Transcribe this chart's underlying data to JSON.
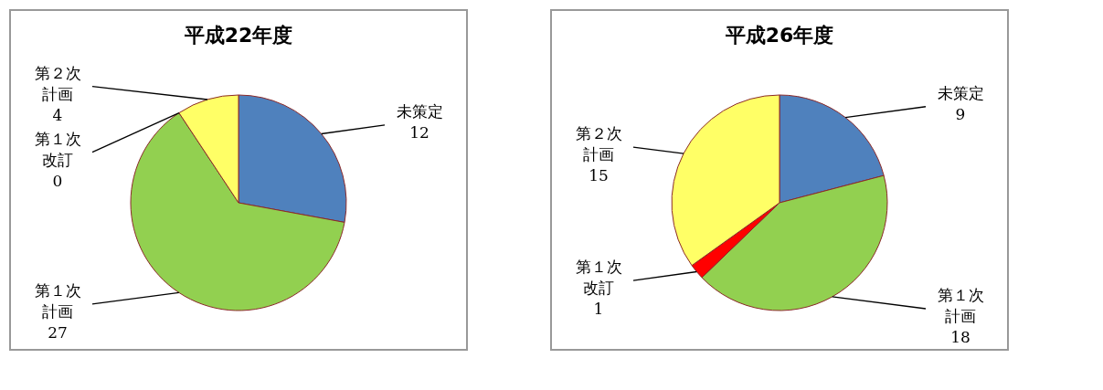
{
  "chart_data": [
    {
      "type": "pie",
      "title": "平成22年度",
      "categories": [
        "未策定",
        "第１次計画",
        "第１次改訂",
        "第２次計画"
      ],
      "values": [
        12,
        27,
        0,
        4
      ],
      "colors": [
        "#4f81bd",
        "#92d050",
        "#ff0000",
        "#ffff66"
      ],
      "value_labels": [
        "12",
        "27",
        "0",
        "4"
      ]
    },
    {
      "type": "pie",
      "title": "平成26年度",
      "categories": [
        "未策定",
        "第１次計画",
        "第１次改訂",
        "第２次計画"
      ],
      "values": [
        9,
        18,
        1,
        15
      ],
      "colors": [
        "#4f81bd",
        "#92d050",
        "#ff0000",
        "#ffff66"
      ],
      "value_labels": [
        "9",
        "18",
        "1",
        "15"
      ]
    }
  ]
}
